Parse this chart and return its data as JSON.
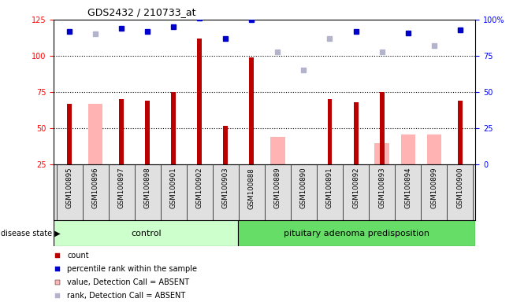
{
  "title": "GDS2432 / 210733_at",
  "samples": [
    "GSM100895",
    "GSM100896",
    "GSM100897",
    "GSM100898",
    "GSM100901",
    "GSM100902",
    "GSM100903",
    "GSM100888",
    "GSM100889",
    "GSM100890",
    "GSM100891",
    "GSM100892",
    "GSM100893",
    "GSM100894",
    "GSM100899",
    "GSM100900"
  ],
  "count_values": [
    67,
    null,
    70,
    69,
    75,
    112,
    52,
    99,
    null,
    null,
    70,
    68,
    75,
    null,
    null,
    69
  ],
  "percentile_values": [
    92,
    null,
    94,
    92,
    95,
    101,
    87,
    100,
    null,
    null,
    null,
    92,
    null,
    91,
    null,
    93
  ],
  "absent_value_values": [
    null,
    67,
    null,
    null,
    null,
    null,
    null,
    null,
    44,
    25,
    null,
    null,
    40,
    46,
    46,
    null
  ],
  "absent_rank_values": [
    null,
    90,
    null,
    null,
    null,
    null,
    null,
    null,
    78,
    65,
    87,
    null,
    78,
    null,
    82,
    93
  ],
  "control_count": 7,
  "pituitary_count": 9,
  "ylim_left": [
    25,
    125
  ],
  "ylim_right": [
    0,
    100
  ],
  "yticks_left": [
    25,
    50,
    75,
    100,
    125
  ],
  "ytick_labels_left": [
    "25",
    "50",
    "75",
    "100",
    "125"
  ],
  "yticks_right": [
    0,
    25,
    50,
    75,
    100
  ],
  "ytick_labels_right": [
    "0",
    "25",
    "50",
    "75",
    "100%"
  ],
  "count_color": "#bb0000",
  "percentile_color": "#0000cc",
  "absent_value_color": "#ffb3b3",
  "absent_rank_color": "#b3b3cc",
  "control_bg": "#ccffcc",
  "pituitary_bg": "#66dd66",
  "sample_bg": "#e0e0e0"
}
